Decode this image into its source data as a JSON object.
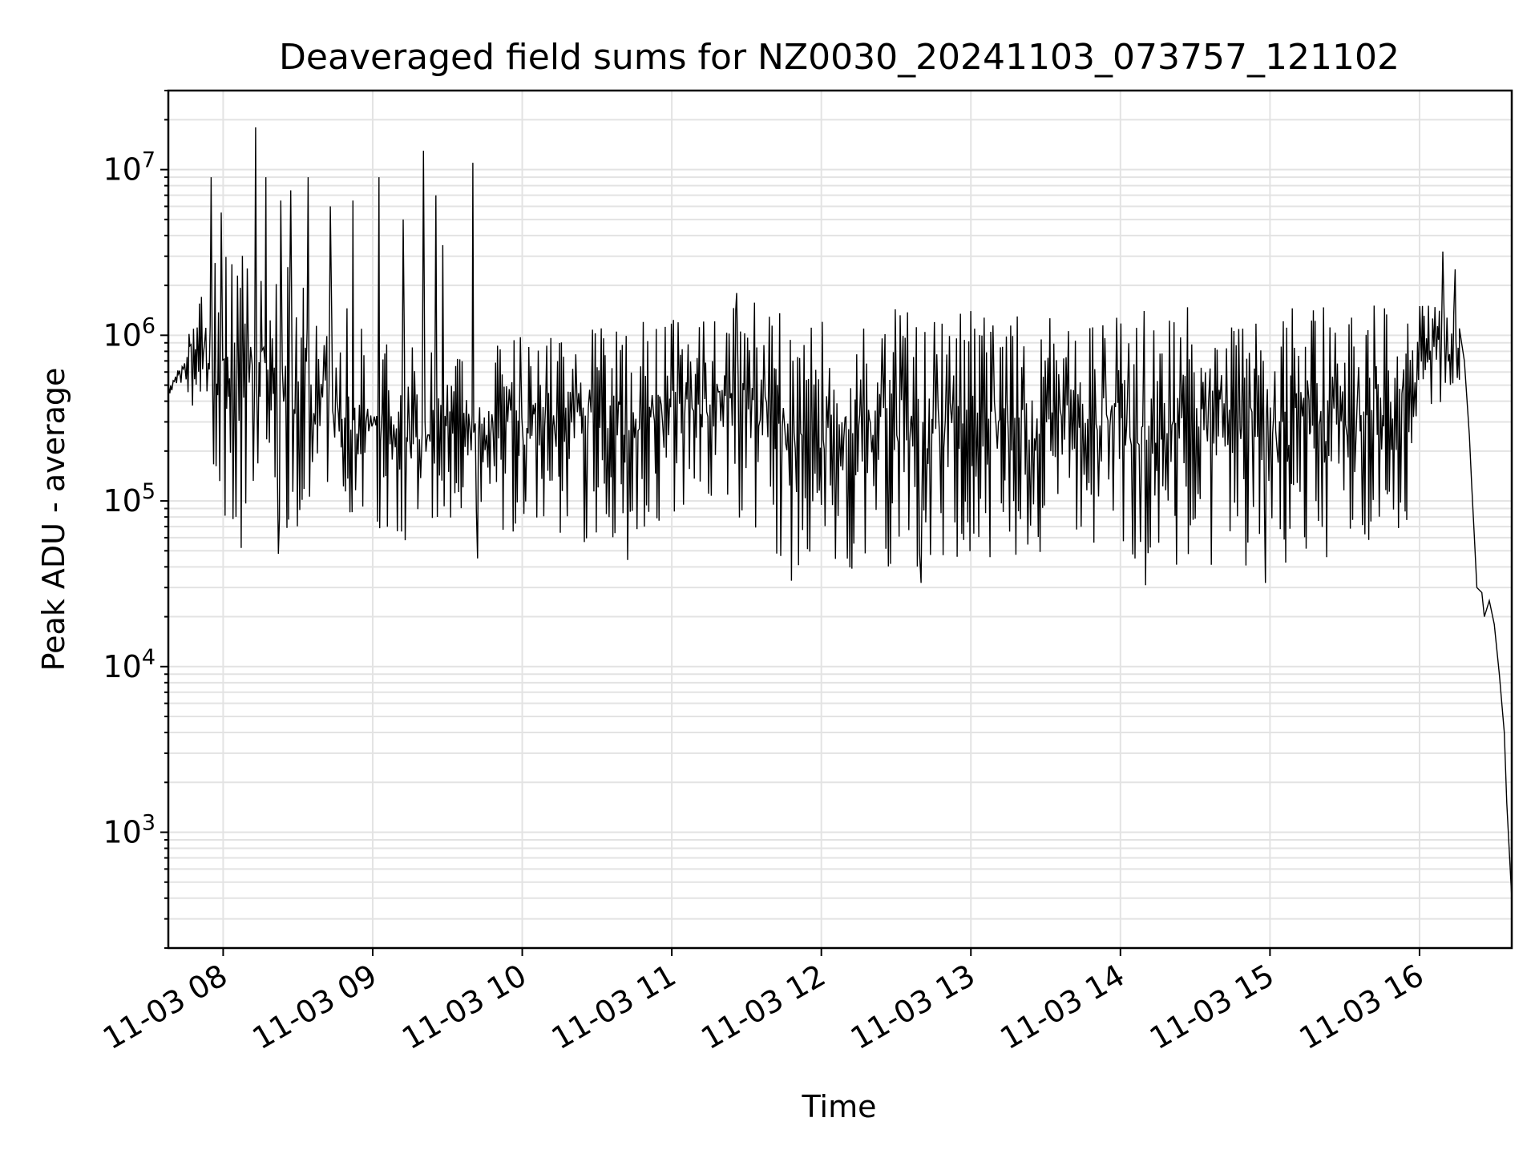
{
  "chart_data": {
    "type": "line",
    "title": "Deaveraged field sums for NZ0030_20241103_073757_121102",
    "xlabel": "Time",
    "ylabel": "Peak ADU - average",
    "x_tick_labels": [
      "11-03 08",
      "11-03 09",
      "11-03 10",
      "11-03 11",
      "11-03 12",
      "11-03 13",
      "11-03 14",
      "11-03 15",
      "11-03 16"
    ],
    "x_ticks": [
      "2024-11-03 08:00",
      "2024-11-03 09:00",
      "2024-11-03 10:00",
      "2024-11-03 11:00",
      "2024-11-03 12:00",
      "2024-11-03 13:00",
      "2024-11-03 14:00",
      "2024-11-03 15:00",
      "2024-11-03 16:00"
    ],
    "xlim": [
      "2024-11-03 07:38",
      "2024-11-03 16:37"
    ],
    "yscale": "log",
    "ylim": [
      200,
      30000000
    ],
    "y_ticks": [
      1000,
      10000,
      100000,
      1000000,
      10000000
    ],
    "y_tick_labels": [
      {
        "base": "10",
        "exp": "3"
      },
      {
        "base": "10",
        "exp": "4"
      },
      {
        "base": "10",
        "exp": "5"
      },
      {
        "base": "10",
        "exp": "6"
      },
      {
        "base": "10",
        "exp": "7"
      }
    ],
    "grid": true,
    "line_color": "#000000",
    "grid_color": "#e3e3e3",
    "series": [
      {
        "envelope": [
          {
            "x": "2024-11-03 07:38",
            "low": 420000,
            "high": 500000
          },
          {
            "x": "2024-11-03 07:43",
            "low": 500000,
            "high": 800000
          },
          {
            "x": "2024-11-03 07:50",
            "low": 300000,
            "high": 2500000
          },
          {
            "x": "2024-11-03 08:00",
            "low": 80000,
            "high": 3500000
          },
          {
            "x": "2024-11-03 08:30",
            "low": 60000,
            "high": 3000000
          },
          {
            "x": "2024-11-03 09:00",
            "low": 60000,
            "high": 1000000
          },
          {
            "x": "2024-11-03 09:30",
            "low": 55000,
            "high": 800000
          },
          {
            "x": "2024-11-03 10:00",
            "low": 60000,
            "high": 1000000
          },
          {
            "x": "2024-11-03 10:30",
            "low": 55000,
            "high": 1200000
          },
          {
            "x": "2024-11-03 11:00",
            "low": 80000,
            "high": 1250000
          },
          {
            "x": "2024-11-03 11:20",
            "low": 90000,
            "high": 1400000
          },
          {
            "x": "2024-11-03 11:35",
            "low": 60000,
            "high": 1600000
          },
          {
            "x": "2024-11-03 11:45",
            "low": 38000,
            "high": 1500000
          },
          {
            "x": "2024-11-03 12:30",
            "low": 38000,
            "high": 1450000
          },
          {
            "x": "2024-11-03 13:00",
            "low": 40000,
            "high": 1500000
          },
          {
            "x": "2024-11-03 13:30",
            "low": 50000,
            "high": 1500000
          },
          {
            "x": "2024-11-03 14:00",
            "low": 45000,
            "high": 1450000
          },
          {
            "x": "2024-11-03 14:30",
            "low": 40000,
            "high": 1500000
          },
          {
            "x": "2024-11-03 15:00",
            "low": 40000,
            "high": 1500000
          },
          {
            "x": "2024-11-03 15:30",
            "low": 45000,
            "high": 1550000
          },
          {
            "x": "2024-11-03 15:55",
            "low": 70000,
            "high": 1600000
          },
          {
            "x": "2024-11-03 16:00",
            "low": 350000,
            "high": 1600000
          },
          {
            "x": "2024-11-03 16:10",
            "low": 400000,
            "high": 1500000
          }
        ],
        "spikes": [
          {
            "x": "2024-11-03 07:55",
            "y": 9000000
          },
          {
            "x": "2024-11-03 07:59",
            "y": 5500000
          },
          {
            "x": "2024-11-03 08:13",
            "y": 18000000
          },
          {
            "x": "2024-11-03 08:17",
            "y": 9000000
          },
          {
            "x": "2024-11-03 08:23",
            "y": 6500000
          },
          {
            "x": "2024-11-03 08:27",
            "y": 7500000
          },
          {
            "x": "2024-11-03 08:34",
            "y": 9000000
          },
          {
            "x": "2024-11-03 08:43",
            "y": 6000000
          },
          {
            "x": "2024-11-03 08:52",
            "y": 6500000
          },
          {
            "x": "2024-11-03 09:02",
            "y": 9000000
          },
          {
            "x": "2024-11-03 09:12",
            "y": 5000000
          },
          {
            "x": "2024-11-03 09:20",
            "y": 13000000
          },
          {
            "x": "2024-11-03 09:25",
            "y": 7000000
          },
          {
            "x": "2024-11-03 09:28",
            "y": 3500000
          },
          {
            "x": "2024-11-03 09:40",
            "y": 11000000
          },
          {
            "x": "2024-11-03 11:26",
            "y": 1800000
          },
          {
            "x": "2024-11-03 16:09",
            "y": 3200000
          },
          {
            "x": "2024-11-03 16:14",
            "y": 2500000
          }
        ],
        "dips": [
          {
            "x": "2024-11-03 08:07",
            "y": 52000
          },
          {
            "x": "2024-11-03 08:22",
            "y": 48000
          },
          {
            "x": "2024-11-03 09:42",
            "y": 45000
          },
          {
            "x": "2024-11-03 10:42",
            "y": 44000
          },
          {
            "x": "2024-11-03 11:48",
            "y": 33000
          },
          {
            "x": "2024-11-03 12:40",
            "y": 32000
          },
          {
            "x": "2024-11-03 14:10",
            "y": 31000
          },
          {
            "x": "2024-11-03 14:58",
            "y": 32000
          }
        ],
        "tail": [
          {
            "x": "2024-11-03 16:16",
            "y": 1100000
          },
          {
            "x": "2024-11-03 16:18",
            "y": 700000
          },
          {
            "x": "2024-11-03 16:20",
            "y": 250000
          },
          {
            "x": "2024-11-03 16:21",
            "y": 120000
          },
          {
            "x": "2024-11-03 16:22",
            "y": 60000
          },
          {
            "x": "2024-11-03 16:23",
            "y": 30000
          },
          {
            "x": "2024-11-03 16:25",
            "y": 28000
          },
          {
            "x": "2024-11-03 16:26",
            "y": 20000
          },
          {
            "x": "2024-11-03 16:28",
            "y": 25000
          },
          {
            "x": "2024-11-03 16:30",
            "y": 18000
          },
          {
            "x": "2024-11-03 16:32",
            "y": 9000
          },
          {
            "x": "2024-11-03 16:34",
            "y": 4000
          },
          {
            "x": "2024-11-03 16:35",
            "y": 1500
          },
          {
            "x": "2024-11-03 16:37",
            "y": 400
          }
        ]
      }
    ]
  }
}
